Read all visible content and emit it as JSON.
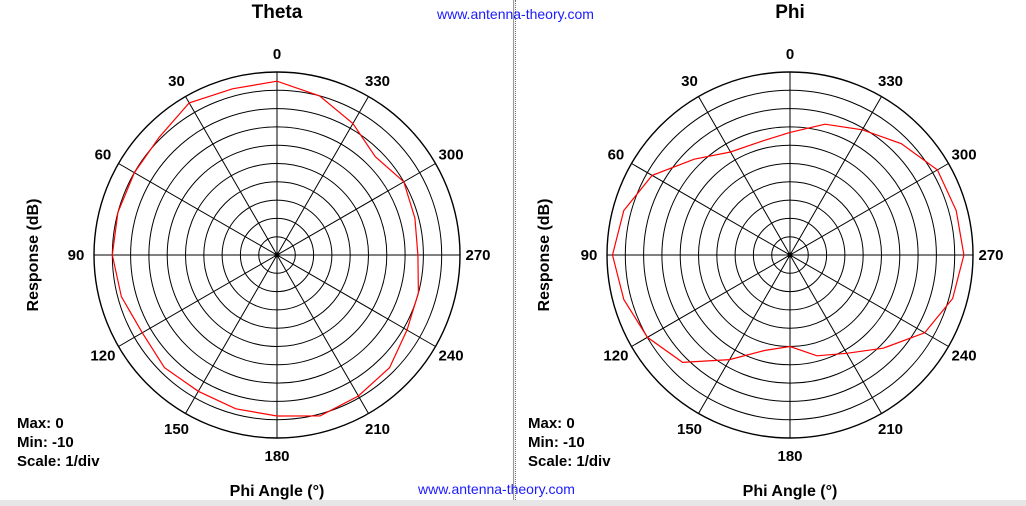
{
  "watermark": "www.antenna-theory.com",
  "chart_data": [
    {
      "type": "polar-line",
      "title": "Theta",
      "xlabel": "Phi Angle  (°)",
      "ylabel": "Response  (dB)",
      "max": "Max: 0",
      "min": "Min: -10",
      "scale": "Scale: 1/div",
      "r_range": [
        -10,
        0
      ],
      "rings": 10,
      "angle_ticks": [
        "0",
        "30",
        "60",
        "90",
        "120",
        "150",
        "180",
        "210",
        "240",
        "270",
        "300",
        "330"
      ],
      "angle_direction": "counterclockwise from top",
      "grid": true,
      "series": [
        {
          "color": "#ff0000",
          "angles": [
            0,
            15,
            30,
            45,
            60,
            75,
            90,
            105,
            120,
            135,
            150,
            165,
            180,
            195,
            210,
            225,
            240,
            255,
            270,
            285,
            300,
            315,
            330,
            345
          ],
          "values": [
            -0.5,
            -0.6,
            -0.4,
            -0.9,
            -1.0,
            -1.0,
            -1.0,
            -1.2,
            -1.5,
            -1.3,
            -1.4,
            -1.3,
            -1.2,
            -0.9,
            -1.1,
            -1.3,
            -1.8,
            -2.0,
            -2.3,
            -2.2,
            -2.0,
            -2.4,
            -1.7,
            -1.0
          ]
        }
      ]
    },
    {
      "type": "polar-line",
      "title": "Phi",
      "xlabel": "Phi Angle  (°)",
      "ylabel": "Response  (dB)",
      "max": "Max: 0",
      "min": "Min: -10",
      "scale": "Scale: 1/div",
      "r_range": [
        -10,
        0
      ],
      "rings": 10,
      "angle_ticks": [
        "0",
        "30",
        "60",
        "90",
        "120",
        "150",
        "180",
        "210",
        "240",
        "270",
        "300",
        "330"
      ],
      "angle_direction": "counterclockwise from top",
      "grid": true,
      "series": [
        {
          "color": "#ff0000",
          "angles": [
            0,
            15,
            30,
            45,
            60,
            75,
            90,
            105,
            120,
            135,
            150,
            165,
            180,
            195,
            210,
            225,
            240,
            255,
            270,
            285,
            300,
            315,
            330,
            345
          ],
          "values": [
            -3.3,
            -3.6,
            -3.5,
            -2.6,
            -1.3,
            -0.6,
            -0.3,
            -0.6,
            -1.0,
            -1.7,
            -3.4,
            -4.6,
            -5.0,
            -4.3,
            -3.8,
            -2.8,
            -1.5,
            -0.8,
            -0.5,
            -0.6,
            -0.7,
            -1.4,
            -2.1,
            -2.6
          ]
        }
      ]
    }
  ]
}
